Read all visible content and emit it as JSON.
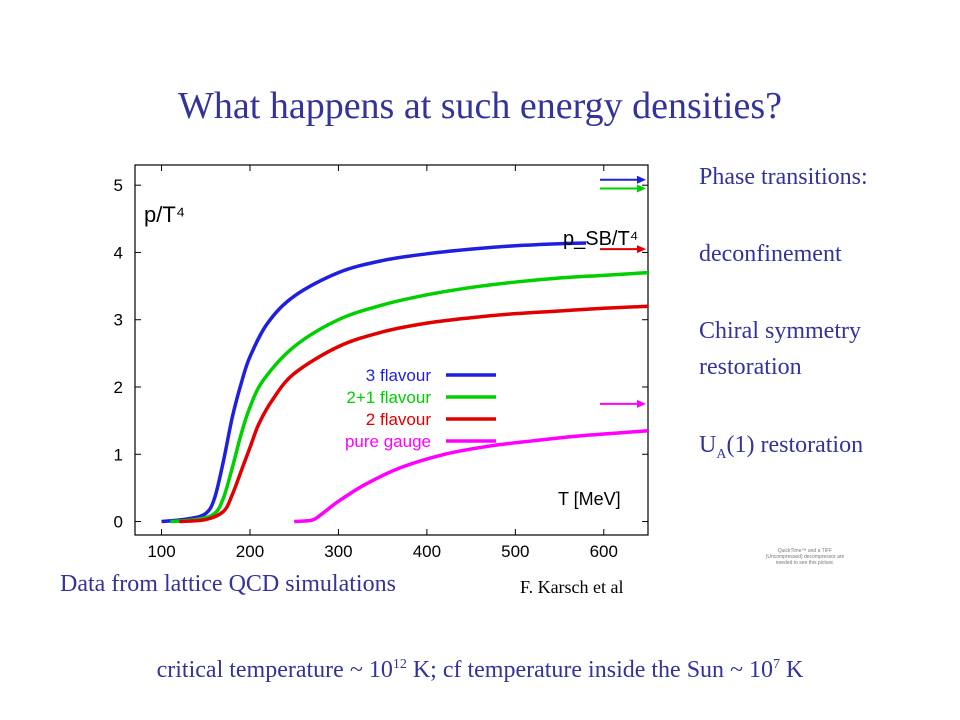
{
  "title": "What happens at such energy densities?",
  "side_panel": {
    "phase_transitions": "Phase transitions:",
    "deconfinement": "deconfinement",
    "chiral_line1": "Chiral symmetry",
    "chiral_line2": "restoration",
    "ua_main": "U",
    "ua_sub": "A",
    "ua_rest": "(1) restoration"
  },
  "caption": "Data from lattice QCD simulations",
  "credit": "F. Karsch et al",
  "bottom": {
    "part1": "critical temperature ~ 10",
    "exp1": "12",
    "part2": " K; cf temperature inside the Sun ~ 10",
    "exp2": "7",
    "part3": " K"
  },
  "quicktime_note": "QuickTime™ and a TIFF (Uncompressed) decompressor are needed to see this picture.",
  "chart_data": {
    "type": "line",
    "ylabel": "p/T⁴",
    "xlabel": "T [MeV]",
    "annotation_sb": "p_SB/T⁴",
    "xlim": [
      70,
      650
    ],
    "ylim": [
      -0.2,
      5.3
    ],
    "xticks": [
      100,
      200,
      300,
      400,
      500,
      600
    ],
    "yticks": [
      0,
      1,
      2,
      3,
      4,
      5
    ],
    "legend_position": "center-right",
    "series": [
      {
        "name": "3 flavour",
        "color": "#1f1fe0",
        "x": [
          100,
          130,
          150,
          160,
          170,
          180,
          190,
          200,
          220,
          250,
          300,
          350,
          400,
          450,
          500,
          550,
          580
        ],
        "y": [
          0.0,
          0.04,
          0.12,
          0.35,
          0.9,
          1.55,
          2.05,
          2.45,
          2.95,
          3.35,
          3.7,
          3.88,
          3.98,
          4.05,
          4.1,
          4.13,
          4.14
        ],
        "sb_limit": 5.08
      },
      {
        "name": "2+1 flavour",
        "color": "#00d000",
        "x": [
          110,
          140,
          160,
          170,
          180,
          190,
          200,
          215,
          250,
          300,
          350,
          400,
          450,
          500,
          550,
          600,
          650
        ],
        "y": [
          0.0,
          0.03,
          0.12,
          0.35,
          0.8,
          1.3,
          1.7,
          2.1,
          2.6,
          3.0,
          3.22,
          3.37,
          3.48,
          3.56,
          3.62,
          3.66,
          3.7
        ],
        "sb_limit": 4.95
      },
      {
        "name": "2 flavour",
        "color": "#e00000",
        "x": [
          120,
          150,
          170,
          180,
          190,
          200,
          210,
          225,
          250,
          300,
          350,
          400,
          450,
          500,
          550,
          600,
          650
        ],
        "y": [
          0.0,
          0.03,
          0.15,
          0.4,
          0.75,
          1.1,
          1.45,
          1.8,
          2.2,
          2.6,
          2.82,
          2.95,
          3.03,
          3.09,
          3.13,
          3.17,
          3.2
        ],
        "sb_limit": 4.05
      },
      {
        "name": "pure gauge",
        "color": "#ff00ff",
        "x": [
          250,
          270,
          280,
          300,
          330,
          370,
          420,
          470,
          520,
          570,
          620,
          650
        ],
        "y": [
          0.0,
          0.02,
          0.1,
          0.3,
          0.55,
          0.8,
          1.0,
          1.12,
          1.2,
          1.27,
          1.32,
          1.35
        ],
        "sb_limit": 1.75
      }
    ]
  }
}
